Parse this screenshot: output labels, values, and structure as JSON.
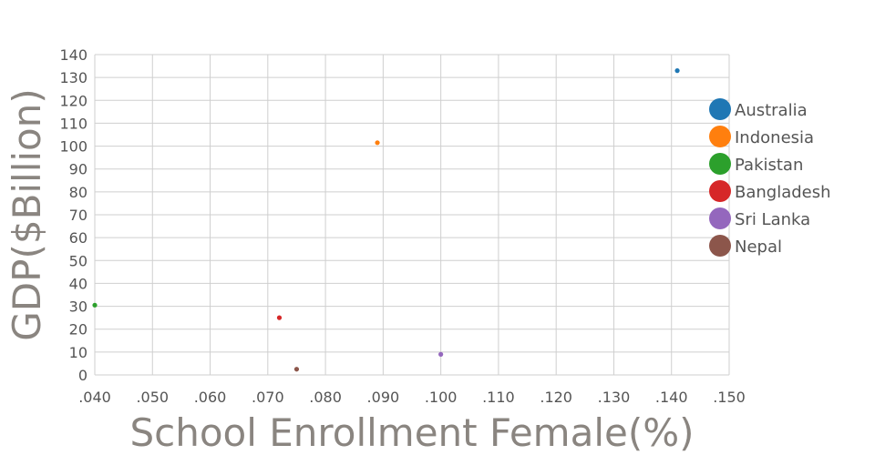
{
  "chart_data": {
    "type": "scatter",
    "title": "",
    "xlabel": "School Enrollment Female(%)",
    "ylabel": "GDP($Billion)",
    "xlim": [
      0.04,
      0.15
    ],
    "ylim": [
      0,
      140
    ],
    "x_ticks": [
      0.04,
      0.05,
      0.06,
      0.07,
      0.08,
      0.09,
      0.1,
      0.11,
      0.12,
      0.13,
      0.14,
      0.15
    ],
    "x_tick_labels": [
      ".040",
      ".050",
      ".060",
      ".070",
      ".080",
      ".090",
      ".100",
      ".110",
      ".120",
      ".130",
      ".140",
      ".150"
    ],
    "y_ticks": [
      0,
      10,
      20,
      30,
      40,
      50,
      60,
      70,
      80,
      90,
      100,
      110,
      120,
      130,
      140
    ],
    "y_tick_labels": [
      "0",
      "10",
      "20",
      "30",
      "40",
      "50",
      "60",
      "70",
      "80",
      "90",
      "100",
      "110",
      "120",
      "130",
      "140"
    ],
    "grid": true,
    "legend_position": "right",
    "series": [
      {
        "name": "Australia",
        "color": "#1f77b4",
        "x": 0.141,
        "y": 133
      },
      {
        "name": "Indonesia",
        "color": "#ff7f0e",
        "x": 0.089,
        "y": 101.5
      },
      {
        "name": "Pakistan",
        "color": "#2ca02c",
        "x": 0.04,
        "y": 30.5
      },
      {
        "name": "Bangladesh",
        "color": "#d62728",
        "x": 0.072,
        "y": 25
      },
      {
        "name": "Sri Lanka",
        "color": "#9467bd",
        "x": 0.1,
        "y": 9
      },
      {
        "name": "Nepal",
        "color": "#8c564b",
        "x": 0.075,
        "y": 2.5
      }
    ]
  }
}
